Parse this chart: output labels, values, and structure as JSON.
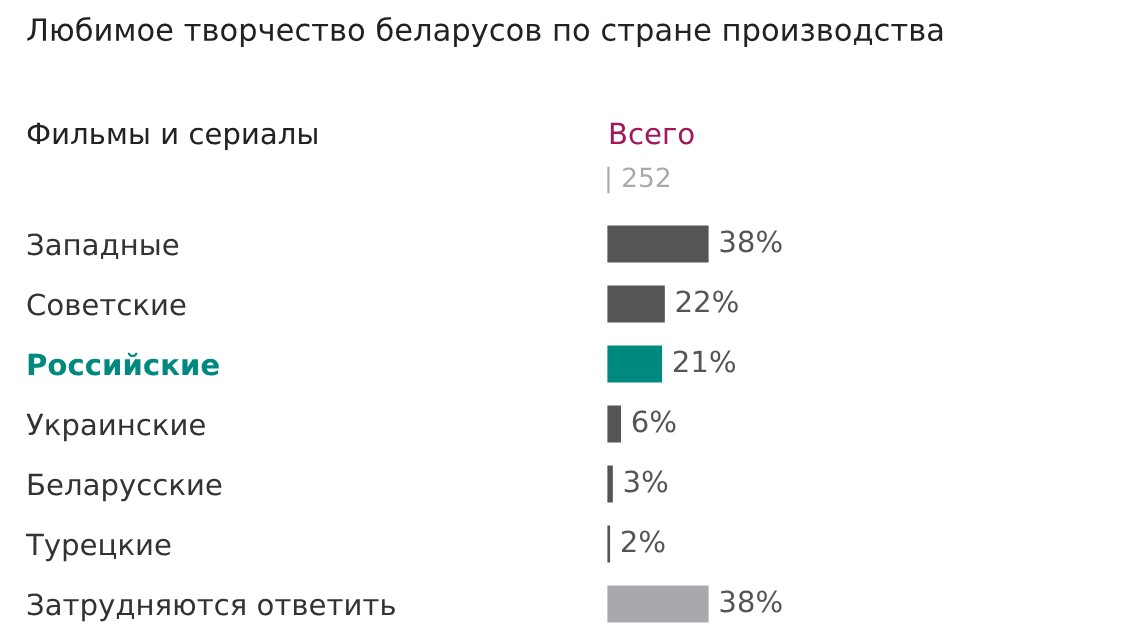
{
  "chart_data": {
    "type": "bar",
    "orientation": "horizontal",
    "title": "Любимое творчество беларусов по стране производства",
    "categories": [
      "Западные",
      "Советские",
      "Российские",
      "Украинские",
      "Беларусские",
      "Турецкие",
      "Затрудняются ответить"
    ],
    "series": [
      {
        "name": "Всего",
        "values": [
          38,
          22,
          21,
          6,
          3,
          2,
          38
        ],
        "value_labels": [
          "38%",
          "22%",
          "21%",
          "6%",
          "3%",
          "2%",
          "38%"
        ],
        "colors": [
          "#555555",
          "#555555",
          "#00897e",
          "#555555",
          "#555555",
          "#555555",
          "#a8a9ad"
        ]
      }
    ],
    "annotations": [
      "Фильмы и сериалы",
      "| 252"
    ],
    "legend": false,
    "grid": false
  }
}
